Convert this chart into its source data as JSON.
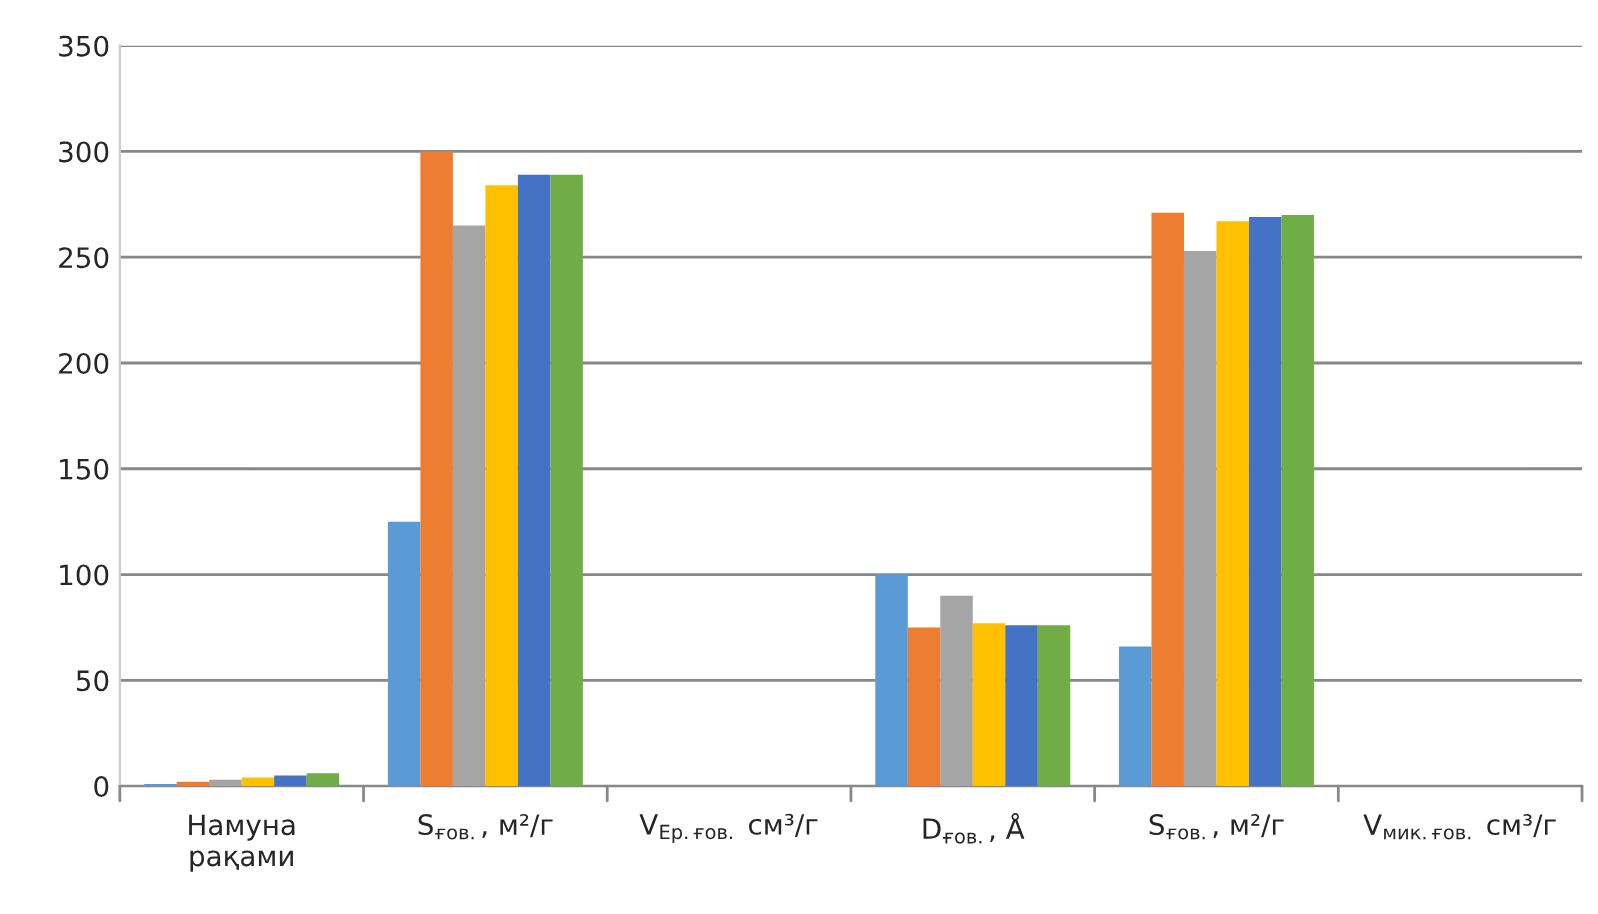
{
  "chart_data": {
    "type": "bar",
    "categories": [
      "Намуна\nрақами",
      "S$_{ғов.}$, м²/г",
      "V$_{Ер.ғов.}$ см³/г",
      "D$_{ғов.}$, Å",
      "S$_{ғов.}$, м²/г",
      "V$_{мик.ғов.}$ см³/г"
    ],
    "series": [
      {
        "color": "#5b9bd5",
        "values": [
          1,
          125,
          null,
          100,
          66,
          null
        ]
      },
      {
        "color": "#ed7d31",
        "values": [
          2,
          300,
          null,
          75,
          271,
          null
        ]
      },
      {
        "color": "#a5a5a5",
        "values": [
          3,
          265,
          null,
          90,
          253,
          null
        ]
      },
      {
        "color": "#ffc000",
        "values": [
          4,
          284,
          null,
          77,
          267,
          null
        ]
      },
      {
        "color": "#4472c4",
        "values": [
          5,
          289,
          null,
          76,
          269,
          null
        ]
      },
      {
        "color": "#70ad47",
        "values": [
          6,
          289,
          null,
          76,
          270,
          null
        ]
      }
    ],
    "ylim": [
      0,
      350
    ],
    "yticks": [
      0,
      50,
      100,
      150,
      200,
      250,
      300,
      350
    ],
    "grid": "y"
  }
}
